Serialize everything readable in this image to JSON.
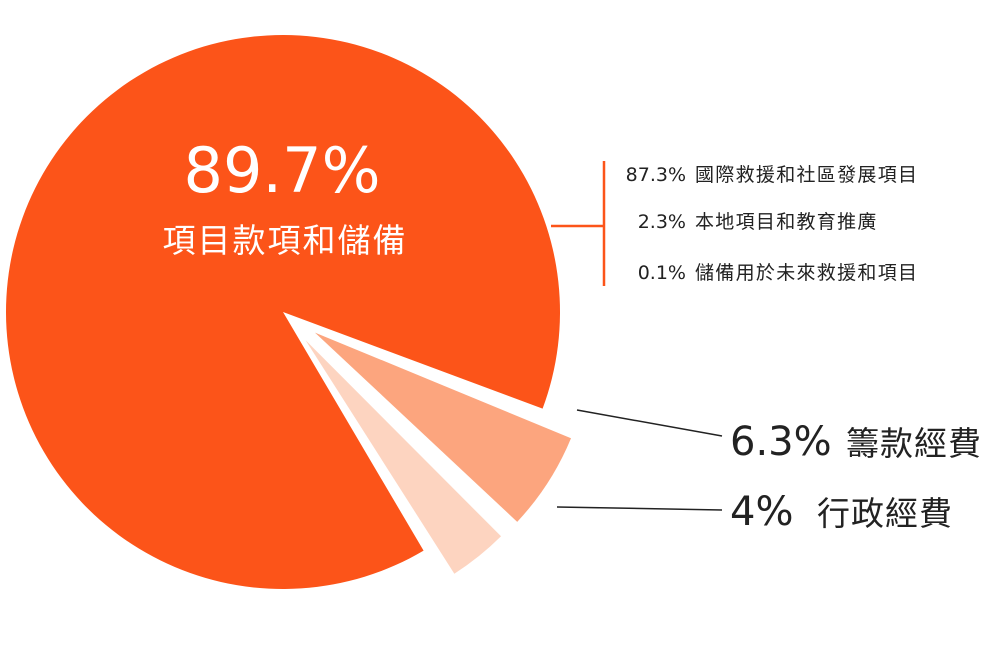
{
  "chart_data": {
    "type": "pie",
    "title": "",
    "slices": [
      {
        "label": "項目款項和儲備",
        "value": 89.7,
        "value_label": "89.7%",
        "color": "#fc5419"
      },
      {
        "label": "籌款經費",
        "value": 6.3,
        "value_label": "6.3%",
        "color": "#fca57e"
      },
      {
        "label": "行政經費",
        "value": 4,
        "value_label": "4%",
        "color": "#fdd4c0"
      }
    ],
    "breakdown": {
      "parent": "項目款項和儲備",
      "items": [
        {
          "value_label": "87.3%",
          "label": "國際救援和社區發展項目"
        },
        {
          "value_label": "2.3%",
          "label": "本地項目和教育推廣"
        },
        {
          "value_label": "0.1%",
          "label": "儲備用於未來救援和項目"
        }
      ]
    },
    "colors": {
      "line": "#fc5419",
      "leader": "#222222",
      "text": "#222222",
      "inside_text": "#ffffff"
    }
  }
}
